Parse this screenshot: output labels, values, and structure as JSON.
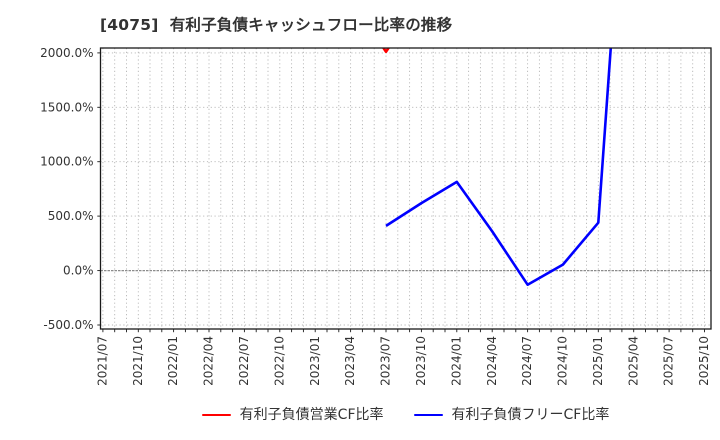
{
  "chart_data": {
    "type": "line",
    "title": "[4075]  有利子負債キャッシュフロー比率の推移",
    "title_color": "#333333",
    "x_tick_labels": [
      "2021/07",
      "2021/10",
      "2022/01",
      "2022/04",
      "2022/07",
      "2022/10",
      "2023/01",
      "2023/04",
      "2023/07",
      "2023/10",
      "2024/01",
      "2024/04",
      "2024/07",
      "2024/10",
      "2025/01",
      "2025/04",
      "2025/07",
      "2025/10"
    ],
    "y_ticks": [
      {
        "value": -500,
        "label": "-500.0%"
      },
      {
        "value": 0,
        "label": "0.0%"
      },
      {
        "value": 500,
        "label": "500.0%"
      },
      {
        "value": 1000,
        "label": "1000.0%"
      },
      {
        "value": 1500,
        "label": "1500.0%"
      },
      {
        "value": 2000,
        "label": "2000.0%"
      }
    ],
    "axes": {
      "ylim": [
        -537,
        2045
      ],
      "xlim_months_from_2021_07": [
        -0.2,
        51.55
      ],
      "x_grid_interval_months": 1,
      "grid": true
    },
    "series": [
      {
        "name": "有利子負債営業CF比率",
        "color": "#ff0000",
        "points": [
          {
            "x": "2023/04",
            "y": 2500,
            "off_scale_estimate": true
          },
          {
            "x": "2023/07",
            "y": 2010
          },
          {
            "x": "2023/10",
            "y": 2500,
            "off_scale_estimate": true
          }
        ]
      },
      {
        "name": "有利子負債フリーCF比率",
        "color": "#0000ff",
        "points": [
          {
            "x": "2023/07",
            "y": 410
          },
          {
            "x": "2023/10",
            "y": 620
          },
          {
            "x": "2024/01",
            "y": 815
          },
          {
            "x": "2024/04",
            "y": 360
          },
          {
            "x": "2024/07",
            "y": -130
          },
          {
            "x": "2024/10",
            "y": 55
          },
          {
            "x": "2025/01",
            "y": 440
          },
          {
            "x": "2025/04",
            "y": 5000,
            "off_scale_estimate": true
          }
        ]
      }
    ],
    "legend_position": "bottom-center",
    "colors": {
      "grid": "#b5b5b5",
      "zero_line": "#8c8c8c",
      "plot_border": "#1a1a1a",
      "tick_label": "#333333",
      "background": "#ffffff"
    }
  }
}
